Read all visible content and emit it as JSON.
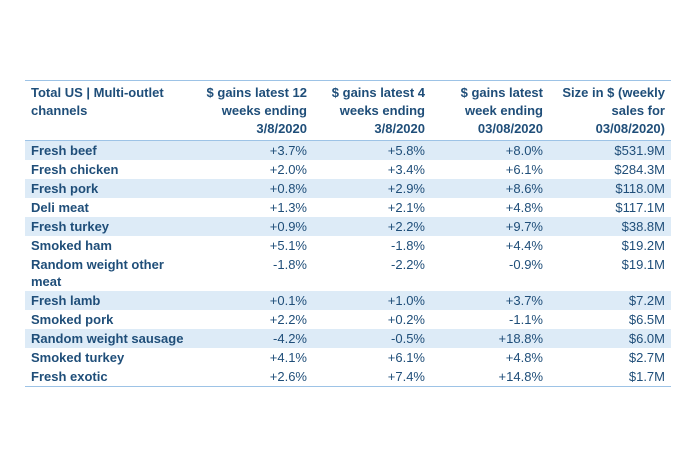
{
  "columns": [
    "Total US | Multi-outlet channels",
    "$ gains latest 12 weeks ending 3/8/2020",
    "$ gains latest 4 weeks ending 3/8/2020",
    "$ gains latest week ending 03/08/2020",
    "Size in $ (weekly sales for 03/08/2020)"
  ],
  "rows": [
    {
      "name": "Fresh beef",
      "g12": "+3.7%",
      "g4": "+5.8%",
      "g1": "+8.0%",
      "size": "$531.9M"
    },
    {
      "name": "Fresh chicken",
      "g12": "+2.0%",
      "g4": "+3.4%",
      "g1": "+6.1%",
      "size": "$284.3M"
    },
    {
      "name": "Fresh pork",
      "g12": "+0.8%",
      "g4": "+2.9%",
      "g1": "+8.6%",
      "size": "$118.0M"
    },
    {
      "name": "Deli meat",
      "g12": "+1.3%",
      "g4": "+2.1%",
      "g1": "+4.8%",
      "size": "$117.1M"
    },
    {
      "name": "Fresh turkey",
      "g12": "+0.9%",
      "g4": "+2.2%",
      "g1": "+9.7%",
      "size": "$38.8M"
    },
    {
      "name": "Smoked ham",
      "g12": "+5.1%",
      "g4": "-1.8%",
      "g1": "+4.4%",
      "size": "$19.2M"
    },
    {
      "name": "Random weight other meat",
      "g12": "-1.8%",
      "g4": "-2.2%",
      "g1": "-0.9%",
      "size": "$19.1M"
    },
    {
      "name": "Fresh lamb",
      "g12": "+0.1%",
      "g4": "+1.0%",
      "g1": "+3.7%",
      "size": "$7.2M"
    },
    {
      "name": "Smoked pork",
      "g12": "+2.2%",
      "g4": "+0.2%",
      "g1": "-1.1%",
      "size": "$6.5M"
    },
    {
      "name": "Random weight sausage",
      "g12": "-4.2%",
      "g4": "-0.5%",
      "g1": "+18.8%",
      "size": "$6.0M"
    },
    {
      "name": "Smoked turkey",
      "g12": "+4.1%",
      "g4": "+6.1%",
      "g1": "+4.8%",
      "size": "$2.7M"
    },
    {
      "name": "Fresh exotic",
      "g12": "+2.6%",
      "g4": "+7.4%",
      "g1": "+14.8%",
      "size": "$1.7M"
    }
  ],
  "shaded_rows": [
    0,
    2,
    4,
    7,
    9
  ],
  "colors": {
    "text": "#1f4e79",
    "shade": "#ddebf7",
    "rule": "#9dc3e6"
  }
}
